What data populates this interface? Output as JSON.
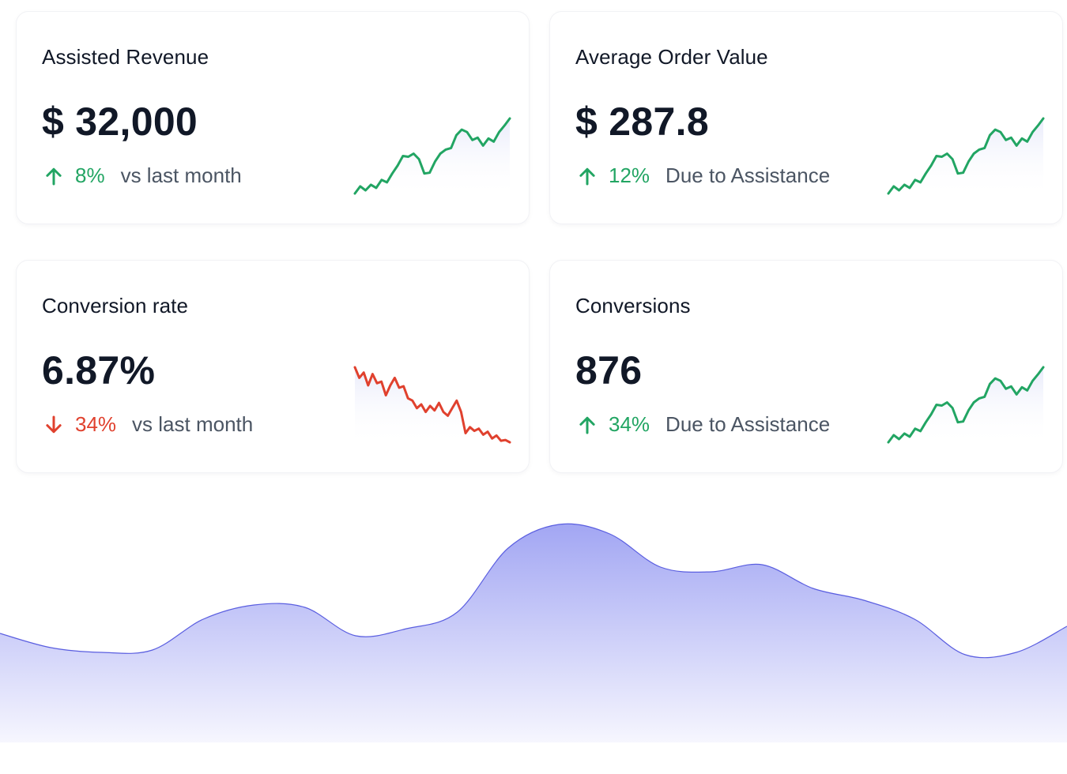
{
  "colors": {
    "up": "#22a563",
    "down": "#e0412e",
    "area_stroke": "#5a5ee0",
    "area_fill_top": "#a2a6f3",
    "area_fill_bottom": "#f6f6fe"
  },
  "cards": [
    {
      "title": "Assisted Revenue",
      "value": "$ 32,000",
      "trend": {
        "direction": "up",
        "icon": "arrow-up-icon",
        "percent": "8%",
        "note": "vs last month"
      },
      "sparkline": [
        5,
        14,
        9,
        16,
        12,
        22,
        19,
        30,
        40,
        52,
        51,
        55,
        48,
        30,
        31,
        45,
        55,
        60,
        62,
        78,
        85,
        82,
        72,
        75,
        65,
        74,
        70,
        82,
        90,
        99
      ]
    },
    {
      "title": "Average Order Value",
      "value": "$ 287.8",
      "trend": {
        "direction": "up",
        "icon": "arrow-up-icon",
        "percent": "12%",
        "note": "Due to Assistance"
      },
      "sparkline": [
        5,
        14,
        9,
        16,
        12,
        22,
        19,
        30,
        40,
        52,
        51,
        55,
        48,
        30,
        31,
        45,
        55,
        60,
        62,
        78,
        85,
        82,
        72,
        75,
        65,
        74,
        70,
        82,
        90,
        99
      ]
    },
    {
      "title": "Conversion rate",
      "value": "6.87%",
      "trend": {
        "direction": "down",
        "icon": "arrow-down-icon",
        "percent": "34%",
        "note": "vs last month"
      },
      "sparkline": [
        99,
        85,
        92,
        75,
        90,
        78,
        80,
        62,
        75,
        85,
        72,
        74,
        58,
        55,
        45,
        50,
        40,
        48,
        42,
        52,
        40,
        35,
        45,
        55,
        40,
        12,
        20,
        15,
        18,
        10,
        14,
        5,
        9,
        2,
        3,
        0
      ]
    },
    {
      "title": "Conversions",
      "value": "876",
      "trend": {
        "direction": "up",
        "icon": "arrow-up-icon",
        "percent": "34%",
        "note": "Due to Assistance"
      },
      "sparkline": [
        5,
        14,
        9,
        16,
        12,
        22,
        19,
        30,
        40,
        52,
        51,
        55,
        48,
        30,
        31,
        45,
        55,
        60,
        62,
        78,
        85,
        82,
        72,
        75,
        65,
        74,
        70,
        82,
        90,
        99
      ]
    }
  ],
  "area_chart": {
    "values": [
      46,
      40,
      38,
      39,
      52,
      58,
      57,
      45,
      48,
      55,
      82,
      92,
      88,
      74,
      72,
      75,
      65,
      60,
      52,
      37,
      38,
      49
    ]
  }
}
